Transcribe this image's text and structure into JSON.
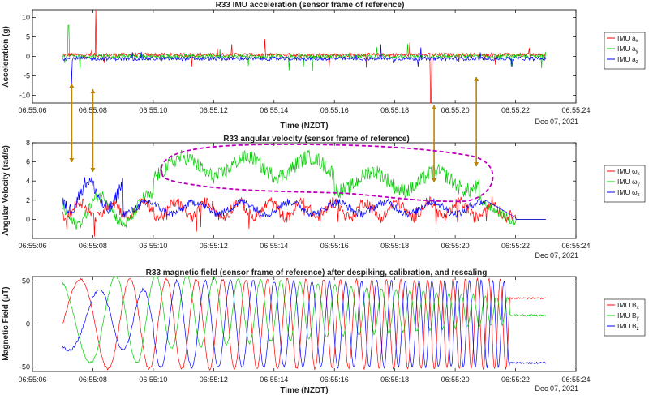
{
  "chart_data": [
    {
      "type": "line",
      "title": "R33 IMU acceleration (sensor frame of reference)",
      "xlabel": "Time (NZDT)",
      "ylabel": "Acceleration (g)",
      "date_label": "Dec 07, 2021",
      "x_ticks": [
        "06:55:06",
        "06:55:08",
        "06:55:10",
        "06:55:12",
        "06:55:14",
        "06:55:16",
        "06:55:18",
        "06:55:20",
        "06:55:22",
        "06:55:24"
      ],
      "ylim": [
        -12,
        12
      ],
      "y_ticks": [
        -10,
        -5,
        0,
        5,
        10
      ],
      "grid": false,
      "legend_position": "right",
      "series": [
        {
          "name": "IMU a",
          "sub": "x",
          "color": "#ff0000",
          "base": 0.4,
          "amp": 0.6
        },
        {
          "name": "IMU a",
          "sub": "y",
          "color": "#00cc00",
          "base": 0.0,
          "amp": 0.7
        },
        {
          "name": "IMU a",
          "sub": "z",
          "color": "#0000ff",
          "base": -0.6,
          "amp": 0.6
        }
      ]
    },
    {
      "type": "line",
      "title": "R33 angular velocity (sensor frame of reference)",
      "xlabel": "",
      "ylabel": "Angular Velocity (rad/s)",
      "date_label": "Dec 07, 2021",
      "x_ticks": [
        "06:55:06",
        "06:55:08",
        "06:55:10",
        "06:55:12",
        "06:55:14",
        "06:55:16",
        "06:55:18",
        "06:55:20",
        "06:55:22",
        "06:55:24"
      ],
      "ylim": [
        -2,
        8
      ],
      "y_ticks": [
        0,
        2,
        4,
        6,
        8
      ],
      "grid": false,
      "legend_position": "right",
      "series": [
        {
          "name": "IMU ω",
          "sub": "x",
          "color": "#ff0000"
        },
        {
          "name": "IMU ω",
          "sub": "y",
          "color": "#00cc00"
        },
        {
          "name": "IMU ω",
          "sub": "z",
          "color": "#0000ff"
        }
      ]
    },
    {
      "type": "line",
      "title": "R33 magnetic field (sensor frame of reference) after despiking, calibration, and rescaling",
      "xlabel": "Time (NZDT)",
      "ylabel": "Magnetic Field (μT)",
      "date_label": "Dec 07, 2021",
      "x_ticks": [
        "06:55:06",
        "06:55:08",
        "06:55:10",
        "06:55:12",
        "06:55:14",
        "06:55:16",
        "06:55:18",
        "06:55:20",
        "06:55:22",
        "06:55:24"
      ],
      "ylim": [
        -55,
        55
      ],
      "y_ticks": [
        -50,
        0,
        50
      ],
      "grid": false,
      "legend_position": "right",
      "series": [
        {
          "name": "IMU B",
          "sub": "x",
          "color": "#ff0000"
        },
        {
          "name": "IMU B",
          "sub": "y",
          "color": "#00cc00"
        },
        {
          "name": "IMU B",
          "sub": "z",
          "color": "#0000ff"
        }
      ]
    }
  ],
  "annotations": {
    "arrow_color": "#b8860b",
    "highlight_color": "#bb00bb"
  }
}
